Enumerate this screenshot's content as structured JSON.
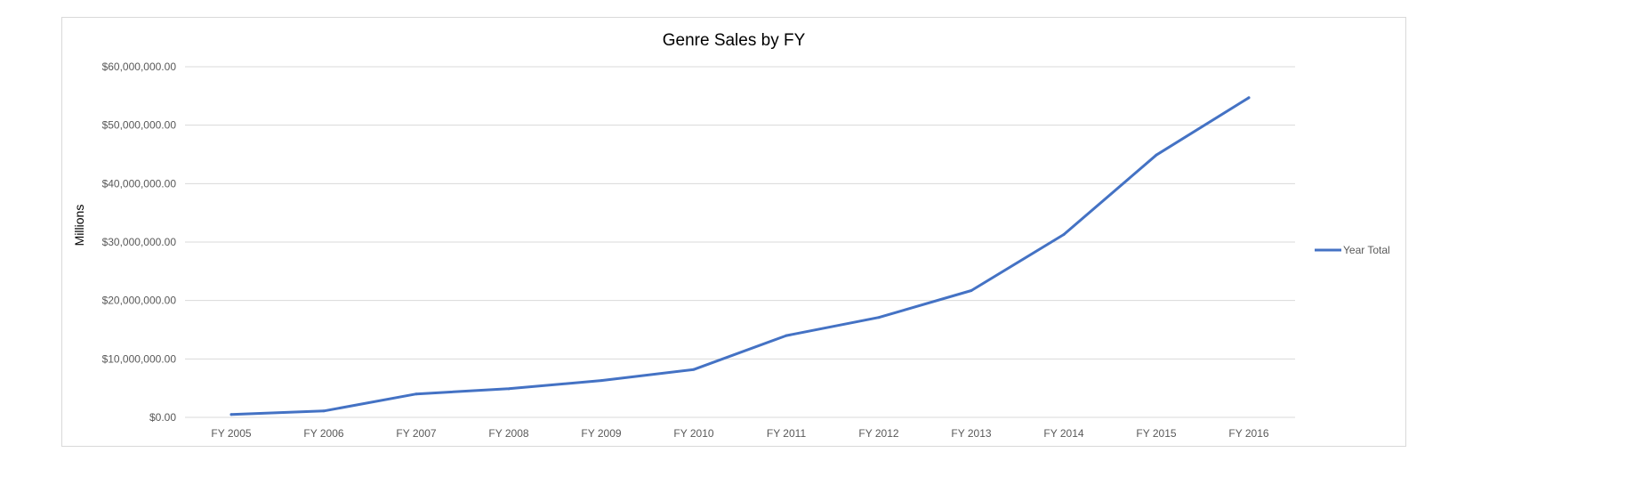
{
  "chart_data": {
    "type": "line",
    "title": "Genre Sales by FY",
    "xlabel": "",
    "ylabel": "Millions",
    "categories": [
      "FY 2005",
      "FY 2006",
      "FY 2007",
      "FY 2008",
      "FY 2009",
      "FY 2010",
      "FY 2011",
      "FY 2012",
      "FY 2013",
      "FY 2014",
      "FY 2015",
      "FY 2016"
    ],
    "series": [
      {
        "name": "Year Total",
        "color": "#4472C4",
        "values": [
          500000,
          1100000,
          4000000,
          4900000,
          6300000,
          8200000,
          14000000,
          17100000,
          21700000,
          31300000,
          44900000,
          54700000
        ]
      }
    ],
    "ylim": [
      0,
      60000000
    ],
    "yticks": [
      0,
      10000000,
      20000000,
      30000000,
      40000000,
      50000000,
      60000000
    ],
    "ytick_labels": [
      "$0.00",
      "$10,000,000.00",
      "$20,000,000.00",
      "$30,000,000.00",
      "$40,000,000.00",
      "$50,000,000.00",
      "$60,000,000.00"
    ],
    "grid": true,
    "legend_position": "right"
  }
}
